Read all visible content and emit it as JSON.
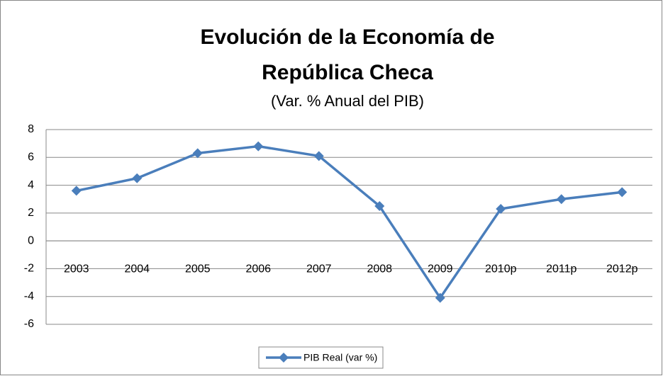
{
  "chart_data": {
    "type": "line",
    "title": "Evolución de la Economía de República Checa",
    "subtitle": "(Var. % Anual del PIB)",
    "categories": [
      "2003",
      "2004",
      "2005",
      "2006",
      "2007",
      "2008",
      "2009",
      "2010p",
      "2011p",
      "2012p"
    ],
    "series": [
      {
        "name": "PIB Real (var %)",
        "color": "#4a7ebb",
        "values": [
          3.6,
          4.5,
          6.3,
          6.8,
          6.1,
          2.5,
          -4.1,
          2.3,
          3.0,
          3.5
        ]
      }
    ],
    "ylim": [
      -6,
      8
    ],
    "yticks": [
      -6,
      -4,
      -2,
      0,
      2,
      4,
      6,
      8
    ],
    "grid": true,
    "legend": "bottom"
  }
}
